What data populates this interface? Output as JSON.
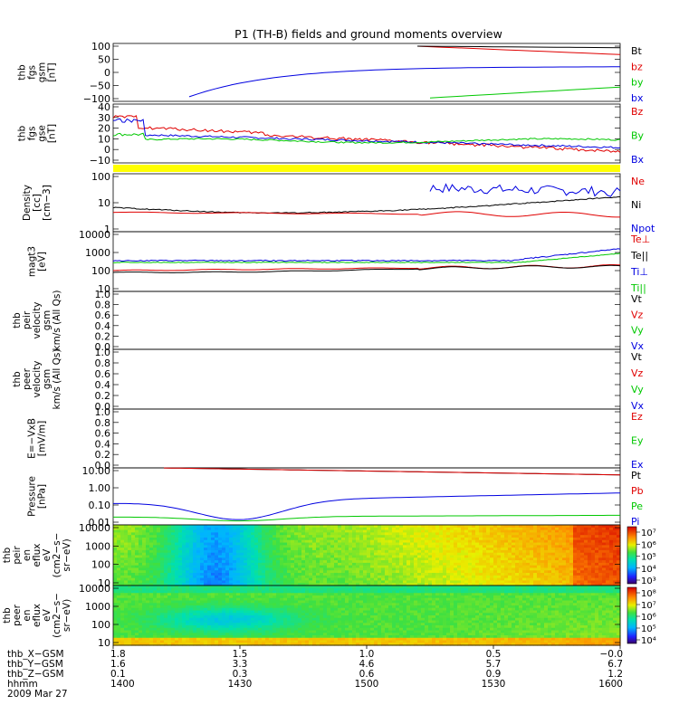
{
  "title": "P1 (TH-B) fields and ground moments overview",
  "colors": {
    "black": "#000000",
    "red": "#e00000",
    "green": "#00c800",
    "blue": "#0000e0",
    "yellow": "#ffff00"
  },
  "chart_data": [
    {
      "type": "line",
      "id": "fgs_gsm",
      "ylabel": [
        "thb",
        "fgs",
        "gsm",
        "[nT]"
      ],
      "yticks": [
        "100",
        "50",
        "0",
        "−50",
        "−100"
      ],
      "ylim": [
        -100,
        100
      ],
      "legend": [
        {
          "name": "Bt",
          "color": "black"
        },
        {
          "name": "bz",
          "color": "red"
        },
        {
          "name": "by",
          "color": "green"
        },
        {
          "name": "bx",
          "color": "blue"
        }
      ]
    },
    {
      "type": "line",
      "id": "fgs_gse",
      "ylabel": [
        "thb",
        "fgs",
        "gse",
        "[nT]"
      ],
      "yticks": [
        "40",
        "30",
        "20",
        "10",
        "0",
        "−10"
      ],
      "ylim": [
        -15,
        40
      ],
      "legend": [
        {
          "name": "Bz",
          "color": "red"
        },
        {
          "name": "By",
          "color": "green"
        },
        {
          "name": "Bx",
          "color": "blue"
        }
      ]
    },
    {
      "type": "line",
      "id": "density",
      "ylabel": [
        "Density",
        "[cc]",
        "[cm−3]"
      ],
      "yticks": [
        "100",
        "10",
        "1"
      ],
      "scale": "log",
      "legend": [
        {
          "name": "Ne",
          "color": "red"
        },
        {
          "name": "Ni",
          "color": "black"
        },
        {
          "name": "Npot",
          "color": "blue"
        }
      ]
    },
    {
      "type": "line",
      "id": "temperature",
      "ylabel": [
        "magt3",
        "[eV]"
      ],
      "yticks": [
        "10000",
        "1000",
        "100",
        "10"
      ],
      "scale": "log",
      "legend": [
        {
          "name": "Te⊥",
          "color": "red"
        },
        {
          "name": "Te||",
          "color": "black"
        },
        {
          "name": "Ti⊥",
          "color": "blue"
        },
        {
          "name": "Ti||",
          "color": "green"
        }
      ]
    },
    {
      "type": "line",
      "id": "peir_velocity",
      "ylabel": [
        "thb",
        "peir",
        "velocity",
        "gsm",
        "km/s (All Qs)"
      ],
      "yticks": [
        "1.0",
        "0.8",
        "0.6",
        "0.4",
        "0.2",
        "0.0"
      ],
      "ylim": [
        0,
        1
      ],
      "legend": [
        {
          "name": "Vt",
          "color": "black"
        },
        {
          "name": "Vz",
          "color": "red"
        },
        {
          "name": "Vy",
          "color": "green"
        },
        {
          "name": "Vx",
          "color": "blue"
        }
      ]
    },
    {
      "type": "line",
      "id": "peer_velocity",
      "ylabel": [
        "thb",
        "peer",
        "velocity",
        "gsm",
        "km/s (All Qs)"
      ],
      "yticks": [
        "1.0",
        "0.8",
        "0.6",
        "0.4",
        "0.2",
        "0.0"
      ],
      "ylim": [
        0,
        1
      ],
      "legend": [
        {
          "name": "Vt",
          "color": "black"
        },
        {
          "name": "Vz",
          "color": "red"
        },
        {
          "name": "Vy",
          "color": "green"
        },
        {
          "name": "Vx",
          "color": "blue"
        }
      ]
    },
    {
      "type": "line",
      "id": "efield",
      "ylabel": [
        "E=−VxB",
        "[mV/m]"
      ],
      "yticks": [
        "1.0",
        "0.8",
        "0.6",
        "0.4",
        "0.2",
        "0.0"
      ],
      "ylim": [
        0,
        1
      ],
      "legend": [
        {
          "name": "Ez",
          "color": "red"
        },
        {
          "name": "Ey",
          "color": "green"
        },
        {
          "name": "Ex",
          "color": "blue"
        }
      ]
    },
    {
      "type": "line",
      "id": "pressure",
      "ylabel": [
        "Pressure",
        "[nPa]"
      ],
      "yticks": [
        "10.00",
        "1.00",
        "0.10",
        "0.01"
      ],
      "scale": "log",
      "legend": [
        {
          "name": "Pt",
          "color": "black"
        },
        {
          "name": "Pb",
          "color": "red"
        },
        {
          "name": "Pe",
          "color": "green"
        },
        {
          "name": "Pi",
          "color": "blue"
        }
      ]
    },
    {
      "type": "heatmap",
      "id": "peir_spec",
      "ylabel": [
        "thb",
        "peir",
        "en",
        "eflux",
        "eV",
        "(cm2−s−",
        "sr−eV)"
      ],
      "yticks": [
        "10000",
        "1000",
        "100",
        "10"
      ],
      "scale": "log",
      "colorbar_ticks": [
        "10⁷",
        "10⁶",
        "10⁵",
        "10⁴",
        "10³"
      ]
    },
    {
      "type": "heatmap",
      "id": "peer_spec",
      "ylabel": [
        "thb",
        "peer",
        "en",
        "eflux",
        "eV",
        "(cm2−s−",
        "sr−eV)"
      ],
      "yticks": [
        "10000",
        "1000",
        "100",
        "10"
      ],
      "scale": "log",
      "colorbar_ticks": [
        "10⁸",
        "10⁷",
        "10⁶",
        "10⁵",
        "10⁴"
      ]
    }
  ],
  "time_axis": {
    "rows": [
      {
        "label": "thb_X−GSM",
        "values": [
          "1.8",
          "1.5",
          "1.0",
          "0.5",
          "−0.0"
        ]
      },
      {
        "label": "thb_Y−GSM",
        "values": [
          "1.6",
          "3.3",
          "4.6",
          "5.7",
          "6.7"
        ]
      },
      {
        "label": "thb_Z−GSM",
        "values": [
          "0.1",
          "0.3",
          "0.6",
          "0.9",
          "1.2"
        ]
      },
      {
        "label": "hhmm",
        "values": [
          "1400",
          "1430",
          "1500",
          "1530",
          "1600"
        ]
      }
    ],
    "date": "2009 Mar 27"
  }
}
